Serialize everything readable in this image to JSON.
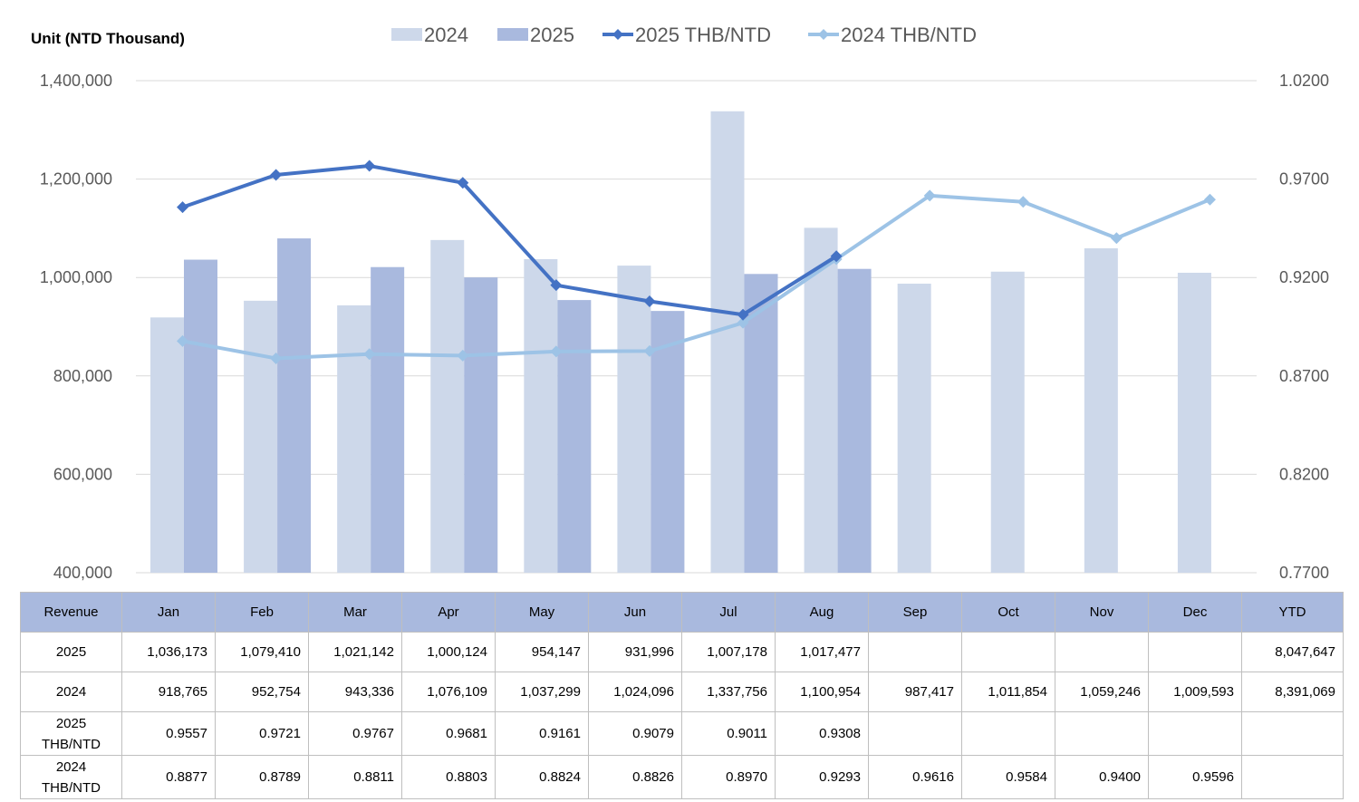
{
  "chart_data": {
    "type": "bar",
    "unit_label": "Unit (NTD  Thousand)",
    "categories": [
      "Jan",
      "Feb",
      "Mar",
      "Apr",
      "May",
      "Jun",
      "Jul",
      "Aug",
      "Sep",
      "Oct",
      "Nov",
      "Dec"
    ],
    "y_left": {
      "ylim": [
        400000,
        1400000
      ],
      "ticks": [
        "400,000",
        "600,000",
        "800,000",
        "1,000,000",
        "1,200,000",
        "1,400,000"
      ],
      "tick_values": [
        400000,
        600000,
        800000,
        1000000,
        1200000,
        1400000
      ]
    },
    "y_right": {
      "ylim": [
        0.77,
        1.02
      ],
      "ticks": [
        "0.7700",
        "0.8200",
        "0.8700",
        "0.9200",
        "0.9700",
        "1.0200"
      ],
      "tick_values": [
        0.77,
        0.82,
        0.87,
        0.92,
        0.97,
        1.02
      ]
    },
    "grid": true,
    "legend_position": "top",
    "series": [
      {
        "name": "2024",
        "type": "bar",
        "axis": "left",
        "color": "#cdd8ea",
        "values": [
          918765,
          952754,
          943336,
          1076109,
          1037299,
          1024096,
          1337756,
          1100954,
          987417,
          1011854,
          1059246,
          1009593
        ]
      },
      {
        "name": "2025",
        "type": "bar",
        "axis": "left",
        "color": "#a9b9de",
        "values": [
          1036173,
          1079410,
          1021142,
          1000124,
          954147,
          931996,
          1007178,
          1017477,
          null,
          null,
          null,
          null
        ]
      },
      {
        "name": "2025 THB/NTD",
        "type": "line",
        "axis": "right",
        "color": "#4472c4",
        "marker": "diamond",
        "values": [
          0.9557,
          0.9721,
          0.9767,
          0.9681,
          0.9161,
          0.9079,
          0.9011,
          0.9308,
          null,
          null,
          null,
          null
        ]
      },
      {
        "name": "2024 THB/NTD",
        "type": "line",
        "axis": "right",
        "color": "#9dc3e6",
        "marker": "diamond",
        "values": [
          0.8877,
          0.8789,
          0.8811,
          0.8803,
          0.8824,
          0.8826,
          0.897,
          0.9293,
          0.9616,
          0.9584,
          0.94,
          0.9596
        ]
      }
    ]
  },
  "table": {
    "header": [
      "Revenue",
      "Jan",
      "Feb",
      "Mar",
      "Apr",
      "May",
      "Jun",
      "Jul",
      "Aug",
      "Sep",
      "Oct",
      "Nov",
      "Dec",
      "YTD"
    ],
    "rows": [
      [
        "2025",
        "1,036,173",
        "1,079,410",
        "1,021,142",
        "1,000,124",
        "954,147",
        "931,996",
        "1,007,178",
        "1,017,477",
        "",
        "",
        "",
        "",
        "8,047,647"
      ],
      [
        "2024",
        "918,765",
        "952,754",
        "943,336",
        "1,076,109",
        "1,037,299",
        "1,024,096",
        "1,337,756",
        "1,100,954",
        "987,417",
        "1,011,854",
        "1,059,246",
        "1,009,593",
        "8,391,069"
      ],
      [
        "2025\nTHB/NTD",
        "0.9557",
        "0.9721",
        "0.9767",
        "0.9681",
        "0.9161",
        "0.9079",
        "0.9011",
        "0.9308",
        "",
        "",
        "",
        "",
        ""
      ],
      [
        "2024\nTHB/NTD",
        "0.8877",
        "0.8789",
        "0.8811",
        "0.8803",
        "0.8824",
        "0.8826",
        "0.8970",
        "0.9293",
        "0.9616",
        "0.9584",
        "0.9400",
        "0.9596",
        ""
      ]
    ]
  }
}
